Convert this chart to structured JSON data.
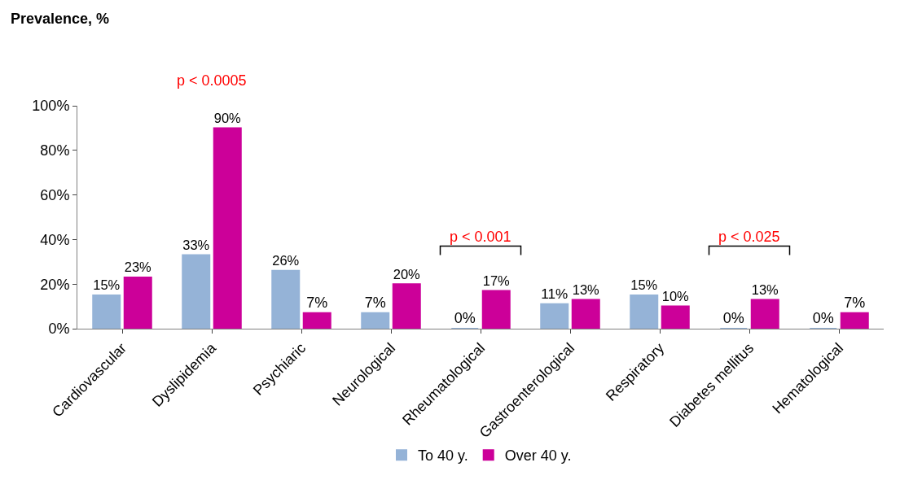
{
  "chart_data": {
    "type": "bar",
    "ylabel": "Prevalence, %",
    "categories": [
      "Cardiovascular",
      "Dyslipidemia",
      "Psychiaric",
      "Neurological",
      "Rheumatological",
      "Gastroenterological",
      "Respiratory",
      "Diabetes mellitus",
      "Hematological"
    ],
    "series": [
      {
        "name": "To 40 y.",
        "color": "#95b3d7",
        "values": [
          15,
          33,
          26,
          7,
          0,
          11,
          15,
          0,
          0
        ],
        "value_labels": [
          "15%",
          "33%",
          "26%",
          "7%",
          "0%",
          "11%",
          "15%",
          "0%",
          "0%"
        ]
      },
      {
        "name": "Over 40 y.",
        "color": "#cc0099",
        "values": [
          23,
          90,
          7,
          20,
          17,
          13,
          10,
          13,
          7
        ],
        "value_labels": [
          "23%",
          "90%",
          "7%",
          "20%",
          "17%",
          "13%",
          "10%",
          "13%",
          "7%"
        ]
      }
    ],
    "ylim": [
      0,
      100
    ],
    "yticks": [
      {
        "value": 0,
        "label": "0%"
      },
      {
        "value": 20,
        "label": "20%"
      },
      {
        "value": 40,
        "label": "40%"
      },
      {
        "value": 60,
        "label": "60%"
      },
      {
        "value": 80,
        "label": "80%"
      },
      {
        "value": 100,
        "label": "100%"
      }
    ],
    "annotations": [
      "p < 0.0005",
      "p < 0.001",
      "p < 0.025"
    ],
    "legend": "bottom"
  }
}
